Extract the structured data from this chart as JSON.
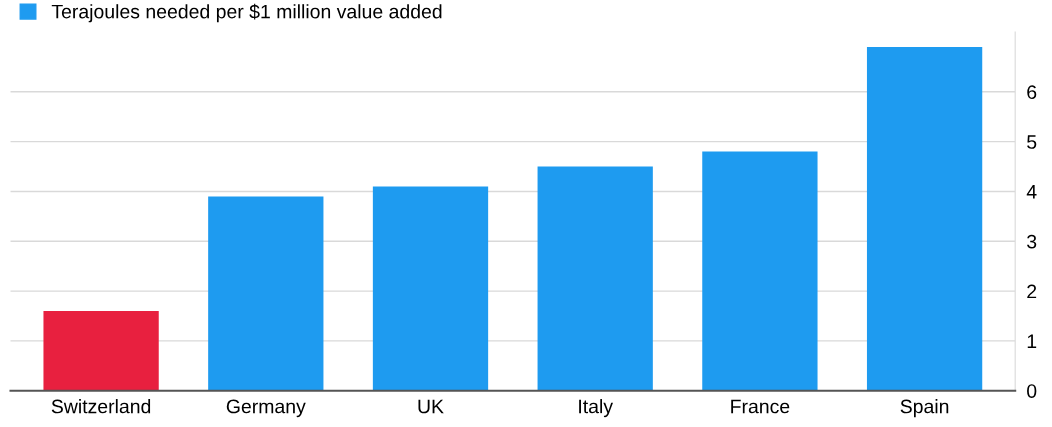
{
  "chart_data": {
    "type": "bar",
    "categories": [
      "Switzerland",
      "Germany",
      "UK",
      "Italy",
      "France",
      "Spain"
    ],
    "series": [
      {
        "name": "Terajoules needed per $1 million value added",
        "color": "#1e9bf0",
        "colors": [
          "#e8203f",
          "#1e9bf0",
          "#1e9bf0",
          "#1e9bf0",
          "#1e9bf0",
          "#1e9bf0"
        ],
        "values": [
          1.6,
          3.9,
          4.1,
          4.5,
          4.8,
          6.9
        ]
      }
    ],
    "ylim": [
      0,
      7.2
    ],
    "yticks": [
      0,
      1,
      2,
      3,
      4,
      5,
      6
    ],
    "grid": "y",
    "legend": "top left"
  }
}
